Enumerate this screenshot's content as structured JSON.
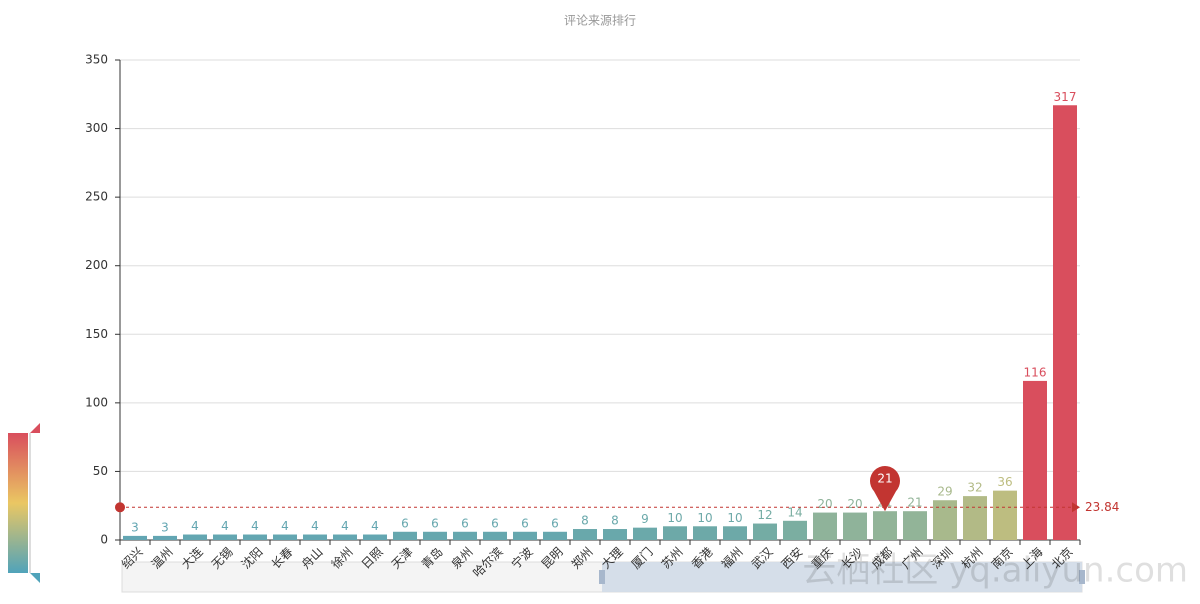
{
  "chart_data": {
    "type": "bar",
    "title": "评论来源排行",
    "categories": [
      "绍兴",
      "温州",
      "大连",
      "无锡",
      "沈阳",
      "长春",
      "舟山",
      "徐州",
      "日照",
      "天津",
      "青岛",
      "泉州",
      "哈尔滨",
      "宁波",
      "昆明",
      "郑州",
      "大理",
      "厦门",
      "苏州",
      "香港",
      "福州",
      "武汉",
      "西安",
      "重庆",
      "长沙",
      "成都",
      "广州",
      "深圳",
      "杭州",
      "南京",
      "上海",
      "北京"
    ],
    "values": [
      3,
      3,
      4,
      4,
      4,
      4,
      4,
      4,
      4,
      6,
      6,
      6,
      6,
      6,
      6,
      8,
      8,
      9,
      10,
      10,
      10,
      12,
      14,
      20,
      20,
      21,
      21,
      29,
      32,
      36,
      116,
      317
    ],
    "colors": [
      "#62a5b2",
      "#62a5b2",
      "#63a6b1",
      "#63a6b1",
      "#63a6b1",
      "#63a6b1",
      "#63a6b1",
      "#63a6b1",
      "#63a6b1",
      "#66a7ae",
      "#66a7ae",
      "#66a7ae",
      "#66a7ae",
      "#66a7ae",
      "#66a7ae",
      "#69a8ab",
      "#69a8ab",
      "#6ba9aa",
      "#6da9a8",
      "#6da9a8",
      "#6da9a8",
      "#74ac a4",
      "#7baea1",
      "#8fb39a",
      "#8fb39a",
      "#92b498",
      "#92b498",
      "#a8b98c",
      "#b2ba86",
      "#bdbd80",
      "#d94e5d",
      "#d94e5d"
    ],
    "ylim": [
      0,
      350
    ],
    "yticks": [
      0,
      50,
      100,
      150,
      200,
      250,
      300,
      350
    ],
    "grid": true,
    "mark_line": {
      "value": 23.84,
      "color": "#c23531"
    },
    "mark_point": {
      "category": "成都",
      "value": 21,
      "color": "#c23531"
    },
    "watermark": "云栖社区 yq.aliyun.com"
  }
}
